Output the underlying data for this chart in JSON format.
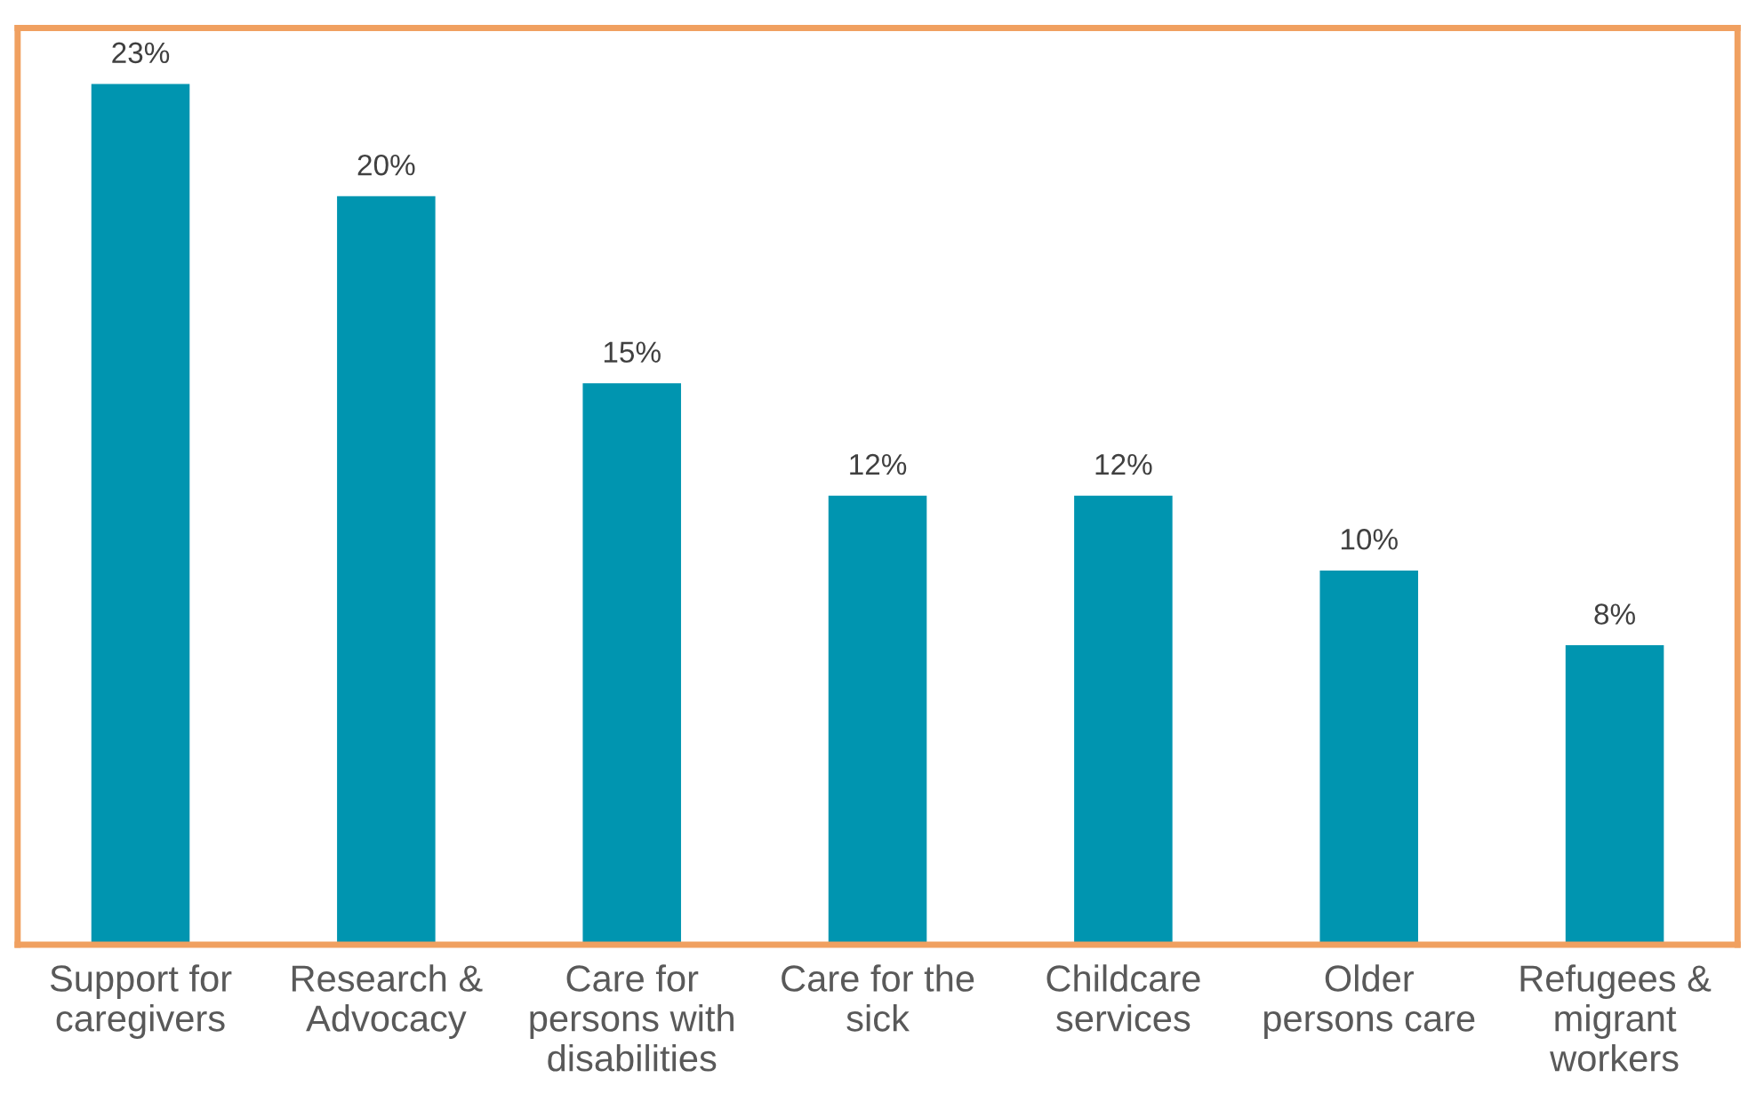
{
  "chart_data": {
    "type": "bar",
    "categories": [
      "Support for caregivers",
      "Research & Advocacy",
      "Care for persons with disabilities",
      "Care for the sick",
      "Childcare services",
      "Older persons care",
      "Refugees & migrant workers"
    ],
    "values": [
      23,
      20,
      15,
      12,
      12,
      10,
      8
    ],
    "value_labels": [
      "23%",
      "20%",
      "15%",
      "12%",
      "12%",
      "10%",
      "8%"
    ],
    "color": "#0095b0",
    "grid": false,
    "legend": false
  }
}
